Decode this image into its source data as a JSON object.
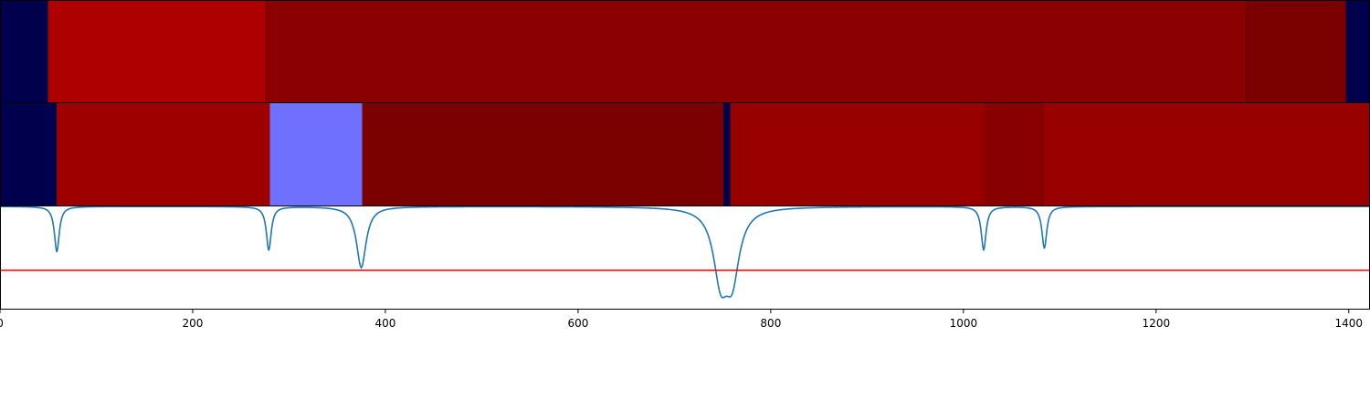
{
  "chart_data": {
    "type": "heatmap",
    "x_range": [
      0,
      1422
    ],
    "x_ticks": [
      0,
      200,
      400,
      600,
      800,
      1000,
      1200,
      1400
    ],
    "x_tick_labels": [
      "0",
      "200",
      "400",
      "600",
      "800",
      "1000",
      "1200",
      "1400"
    ],
    "grid": false,
    "rows": [
      {
        "segments": [
          {
            "start": 0,
            "end": 50,
            "color": "#00004c"
          },
          {
            "start": 50,
            "end": 275,
            "color": "#ae0000"
          },
          {
            "start": 275,
            "end": 1292,
            "color": "#8b0000"
          },
          {
            "start": 1292,
            "end": 1397,
            "color": "#7b0000"
          },
          {
            "start": 1397,
            "end": 1422,
            "color": "#00004c"
          }
        ]
      },
      {
        "segments": [
          {
            "start": 0,
            "end": 59,
            "color": "#00004c"
          },
          {
            "start": 59,
            "end": 280,
            "color": "#9e0000"
          },
          {
            "start": 280,
            "end": 376,
            "color": "#7070ff"
          },
          {
            "start": 376,
            "end": 751,
            "color": "#7b0000"
          },
          {
            "start": 751,
            "end": 758,
            "color": "#00004c"
          },
          {
            "start": 758,
            "end": 1021,
            "color": "#990000"
          },
          {
            "start": 1021,
            "end": 1084,
            "color": "#880000"
          },
          {
            "start": 1084,
            "end": 1422,
            "color": "#990000"
          }
        ]
      }
    ],
    "line": {
      "color": "#1f77b4",
      "y_range": [
        -1.12,
        0
      ],
      "dips": [
        {
          "center": 59,
          "depth": 0.5,
          "width": 3
        },
        {
          "center": 279,
          "depth": 0.48,
          "width": 3
        },
        {
          "center": 375,
          "depth": 0.67,
          "width": 6
        },
        {
          "center": 748,
          "depth": 0.72,
          "width": 9
        },
        {
          "center": 760,
          "depth": 0.7,
          "width": 9
        },
        {
          "center": 1021,
          "depth": 0.48,
          "width": 3
        },
        {
          "center": 1084,
          "depth": 0.46,
          "width": 3
        }
      ],
      "threshold": -0.7,
      "threshold_color": "#ff0000"
    }
  }
}
